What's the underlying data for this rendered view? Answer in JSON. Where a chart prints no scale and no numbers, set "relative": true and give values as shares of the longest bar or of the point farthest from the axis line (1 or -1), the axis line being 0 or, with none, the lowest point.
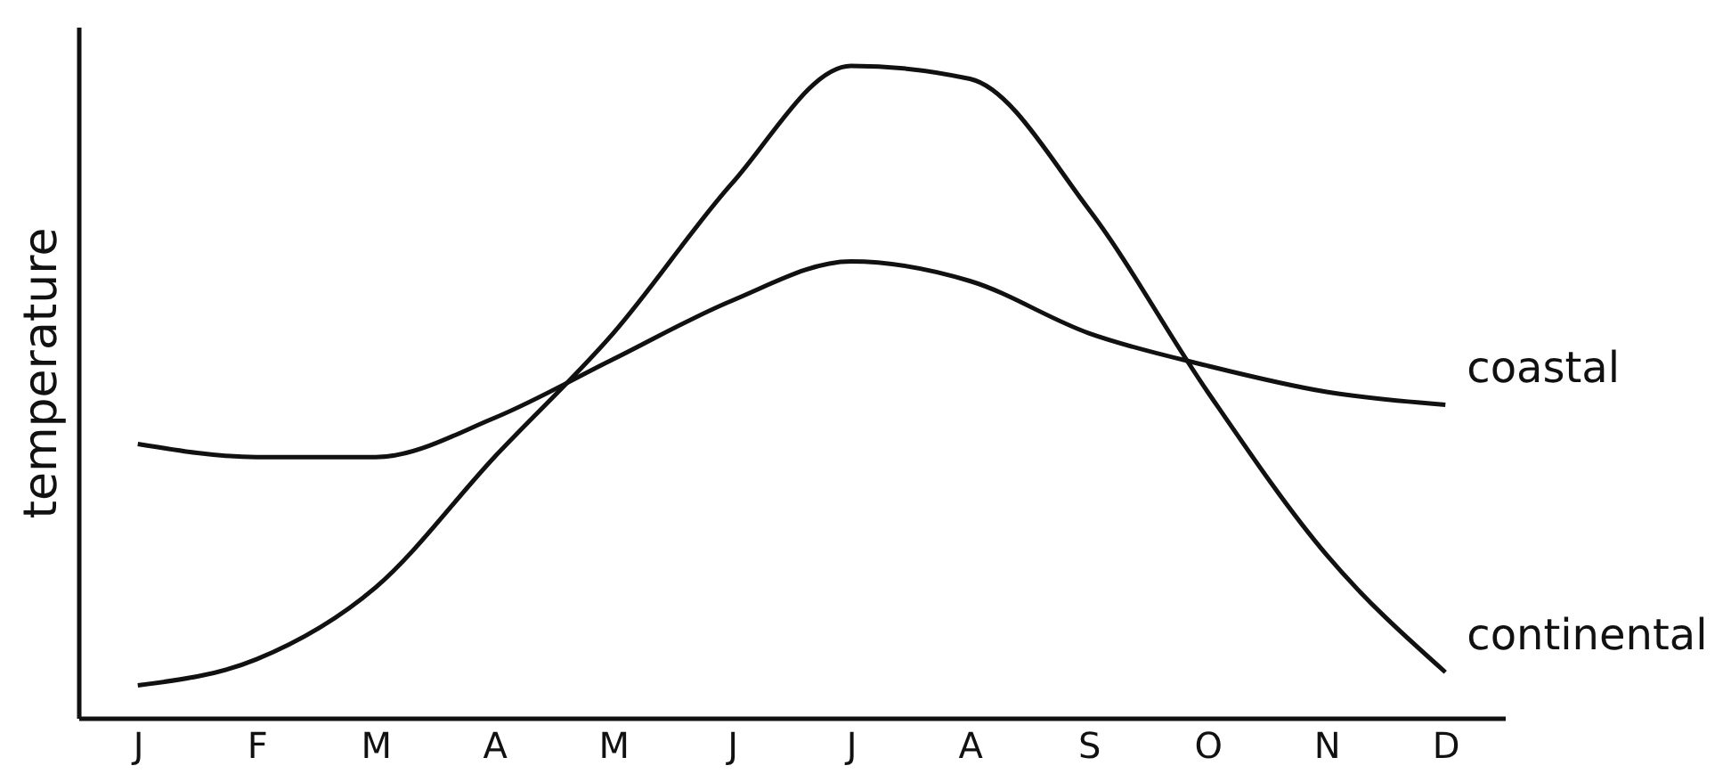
{
  "chart_data": {
    "type": "line",
    "relative": true,
    "ylabel": "temperature",
    "categories": [
      "J",
      "F",
      "M",
      "A",
      "M",
      "J",
      "J",
      "A",
      "S",
      "O",
      "N",
      "D"
    ],
    "series": [
      {
        "name": "coastal",
        "color": "#111111",
        "values": [
          0.42,
          0.4,
          0.4,
          0.46,
          0.55,
          0.64,
          0.7,
          0.67,
          0.59,
          0.54,
          0.5,
          0.48
        ]
      },
      {
        "name": "continental",
        "color": "#111111",
        "values": [
          0.05,
          0.09,
          0.2,
          0.4,
          0.59,
          0.82,
          1,
          0.98,
          0.78,
          0.5,
          0.25,
          0.07
        ]
      }
    ],
    "grid": false,
    "legend": false,
    "marker": "none",
    "line_style": "solid"
  }
}
